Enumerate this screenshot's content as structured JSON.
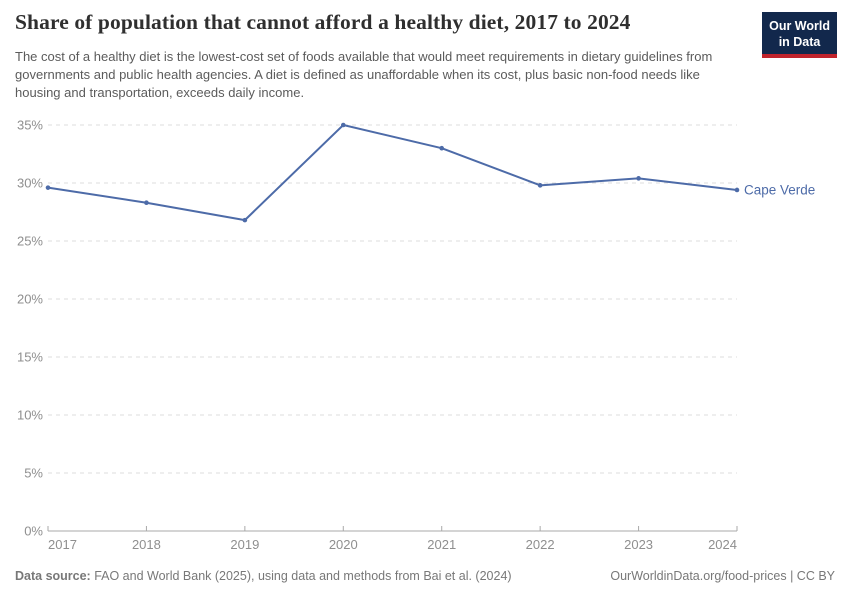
{
  "header": {
    "title": "Share of population that cannot afford a healthy diet, 2017 to 2024",
    "subtitle": "The cost of a healthy diet is the lowest-cost set of foods available that would meet requirements in dietary guidelines from governments and public health agencies. A diet is defined as unaffordable when its cost, plus basic non-food needs like housing and transportation, exceeds daily income.",
    "logo": {
      "line1": "Our World",
      "line2": "in Data",
      "bg_color": "#12284c",
      "stripe_color": "#c0232c"
    }
  },
  "chart_data": {
    "type": "line",
    "title": "Share of population that cannot afford a healthy diet, 2017 to 2024",
    "x": [
      2017,
      2018,
      2019,
      2020,
      2021,
      2022,
      2023,
      2024
    ],
    "series": [
      {
        "name": "Cape Verde",
        "color": "#4d6ba8",
        "values": [
          29.6,
          28.3,
          26.8,
          35.0,
          33.0,
          29.8,
          30.4,
          29.4
        ]
      }
    ],
    "ylim": [
      0,
      35
    ],
    "yticks": [
      0,
      5,
      10,
      15,
      20,
      25,
      30,
      35
    ],
    "ytick_suffix": "%",
    "grid": "horizontal-dashed",
    "legend_position": "right-of-line",
    "colors": {
      "gridline": "#dcdcdc",
      "axis": "#a9a9a9",
      "tick_text": "#8f8f8f"
    }
  },
  "footer": {
    "source_label": "Data source:",
    "source_text": " FAO and World Bank (2025), using data and methods from Bai et al. (2024)",
    "url": "OurWorldinData.org/food-prices",
    "divider": " | ",
    "license": "CC BY"
  }
}
